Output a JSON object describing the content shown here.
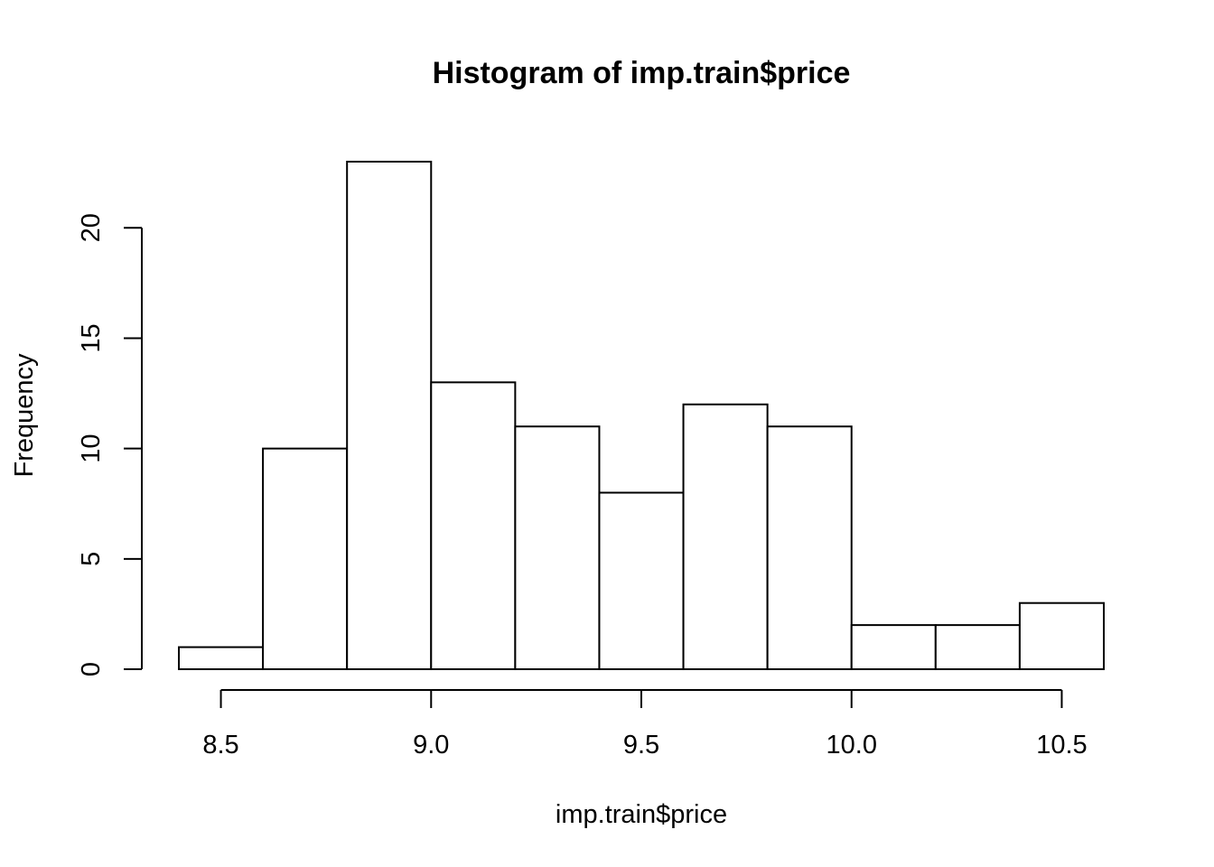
{
  "chart_data": {
    "type": "histogram",
    "title": "Histogram of imp.train$price",
    "xlabel": "imp.train$price",
    "ylabel": "Frequency",
    "bins": [
      {
        "start": 8.4,
        "end": 8.6,
        "count": 1
      },
      {
        "start": 8.6,
        "end": 8.8,
        "count": 10
      },
      {
        "start": 8.8,
        "end": 9.0,
        "count": 23
      },
      {
        "start": 9.0,
        "end": 9.2,
        "count": 13
      },
      {
        "start": 9.2,
        "end": 9.4,
        "count": 11
      },
      {
        "start": 9.4,
        "end": 9.6,
        "count": 8
      },
      {
        "start": 9.6,
        "end": 9.8,
        "count": 12
      },
      {
        "start": 9.8,
        "end": 10.0,
        "count": 11
      },
      {
        "start": 10.0,
        "end": 10.2,
        "count": 2
      },
      {
        "start": 10.2,
        "end": 10.4,
        "count": 2
      },
      {
        "start": 10.4,
        "end": 10.6,
        "count": 3
      }
    ],
    "x_ticks": [
      8.5,
      9.0,
      9.5,
      10.0,
      10.5
    ],
    "x_tick_labels": [
      "8.5",
      "9.0",
      "9.5",
      "10.0",
      "10.5"
    ],
    "y_ticks": [
      0,
      5,
      10,
      15,
      20
    ],
    "y_tick_labels": [
      "0",
      "5",
      "10",
      "15",
      "20"
    ],
    "xlim": [
      8.4,
      10.6
    ],
    "ylim": [
      0,
      23
    ],
    "grid": false,
    "legend": "none"
  }
}
